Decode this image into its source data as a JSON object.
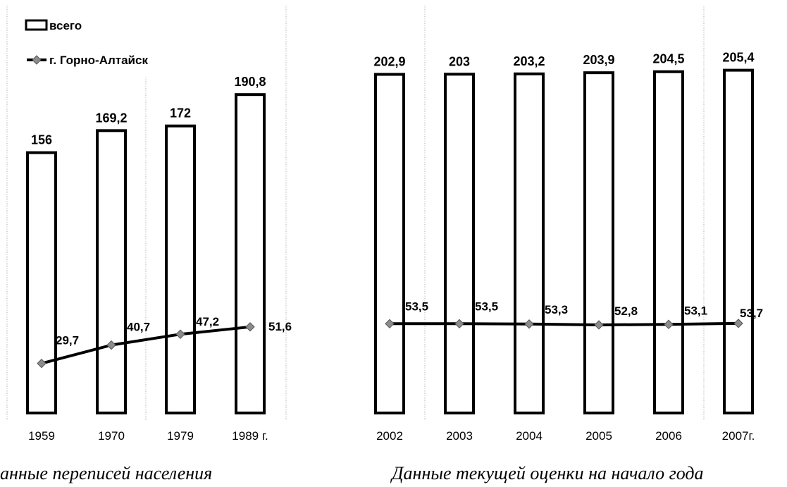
{
  "legend": {
    "bars_label": "всего",
    "line_label": "г. Горно-Алтайск"
  },
  "colors": {
    "bar_fill": "#ffffff",
    "bar_stroke": "#000000",
    "line": "#000000",
    "marker": "#8c8c8c"
  },
  "chart_data": [
    {
      "type": "bar",
      "title": "",
      "caption": "анные переписей населения",
      "categories": [
        "1959",
        "1970",
        "1979",
        "1989 г."
      ],
      "series": [
        {
          "name": "всего",
          "type": "bar",
          "values": [
            156,
            169.2,
            172,
            190.8
          ],
          "labels": [
            "156",
            "169,2",
            "172",
            "190,8"
          ]
        },
        {
          "name": "г. Горно-Алтайск",
          "type": "line",
          "values": [
            29.7,
            40.7,
            47.2,
            51.6
          ],
          "labels": [
            "29,7",
            "40,7",
            "47,2",
            "51,6"
          ]
        }
      ],
      "ylim": [
        0,
        240
      ],
      "grid": false,
      "legend_position": "top-left"
    },
    {
      "type": "bar",
      "title": "",
      "caption": "Данные текущей оценки на начало года",
      "categories": [
        "2002",
        "2003",
        "2004",
        "2005",
        "2006",
        "2007г."
      ],
      "series": [
        {
          "name": "всего",
          "type": "bar",
          "values": [
            202.9,
            203,
            203.2,
            203.9,
            204.5,
            205.4
          ],
          "labels": [
            "202,9",
            "203",
            "203,2",
            "203,9",
            "204,5",
            "205,4"
          ]
        },
        {
          "name": "г. Горно-Алтайск",
          "type": "line",
          "values": [
            53.5,
            53.5,
            53.3,
            52.8,
            53.1,
            53.7
          ],
          "labels": [
            "53,5",
            "53,5",
            "53,3",
            "52,8",
            "53,1",
            "53,7"
          ]
        }
      ],
      "ylim": [
        0,
        240
      ],
      "grid": false,
      "legend_position": "none"
    }
  ]
}
